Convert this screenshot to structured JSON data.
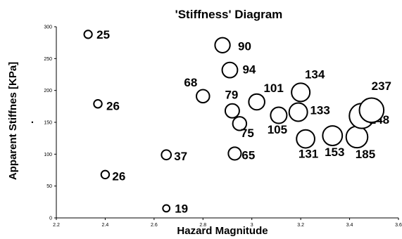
{
  "chart_data": {
    "type": "scatter",
    "title": "'Stiffness' Diagram",
    "xlabel": "Hazard Magnitude",
    "ylabel": "Apparent Stiffnes [KPa]",
    "ylabel_marker": ".",
    "xlim": [
      2.2,
      3.6
    ],
    "ylim": [
      0,
      300
    ],
    "x_ticks": [
      "2.2",
      "2.4",
      "2.6",
      "2.8",
      "3",
      "3.2",
      "3.4",
      "3.6"
    ],
    "y_ticks": [
      "0",
      "50",
      "100",
      "150",
      "200",
      "250",
      "300"
    ],
    "grid": false,
    "points": [
      {
        "x": 2.33,
        "y": 288,
        "label": "25"
      },
      {
        "x": 2.37,
        "y": 179,
        "label": "26"
      },
      {
        "x": 2.4,
        "y": 68,
        "label": "26"
      },
      {
        "x": 2.65,
        "y": 99,
        "label": "37"
      },
      {
        "x": 2.65,
        "y": 15,
        "label": "19"
      },
      {
        "x": 2.8,
        "y": 191,
        "label": "68"
      },
      {
        "x": 2.88,
        "y": 271,
        "label": "90"
      },
      {
        "x": 2.91,
        "y": 232,
        "label": "94"
      },
      {
        "x": 2.92,
        "y": 168,
        "label": "79"
      },
      {
        "x": 2.95,
        "y": 148,
        "label": "75"
      },
      {
        "x": 2.93,
        "y": 101,
        "label": "65"
      },
      {
        "x": 3.02,
        "y": 182,
        "label": "101"
      },
      {
        "x": 3.11,
        "y": 161,
        "label": "105"
      },
      {
        "x": 3.19,
        "y": 166,
        "label": "133"
      },
      {
        "x": 3.2,
        "y": 197,
        "label": "134"
      },
      {
        "x": 3.22,
        "y": 124,
        "label": "131"
      },
      {
        "x": 3.33,
        "y": 129,
        "label": "153"
      },
      {
        "x": 3.43,
        "y": 127,
        "label": "185"
      },
      {
        "x": 3.45,
        "y": 160,
        "label": "248"
      },
      {
        "x": 3.49,
        "y": 169,
        "label": "237"
      }
    ]
  }
}
